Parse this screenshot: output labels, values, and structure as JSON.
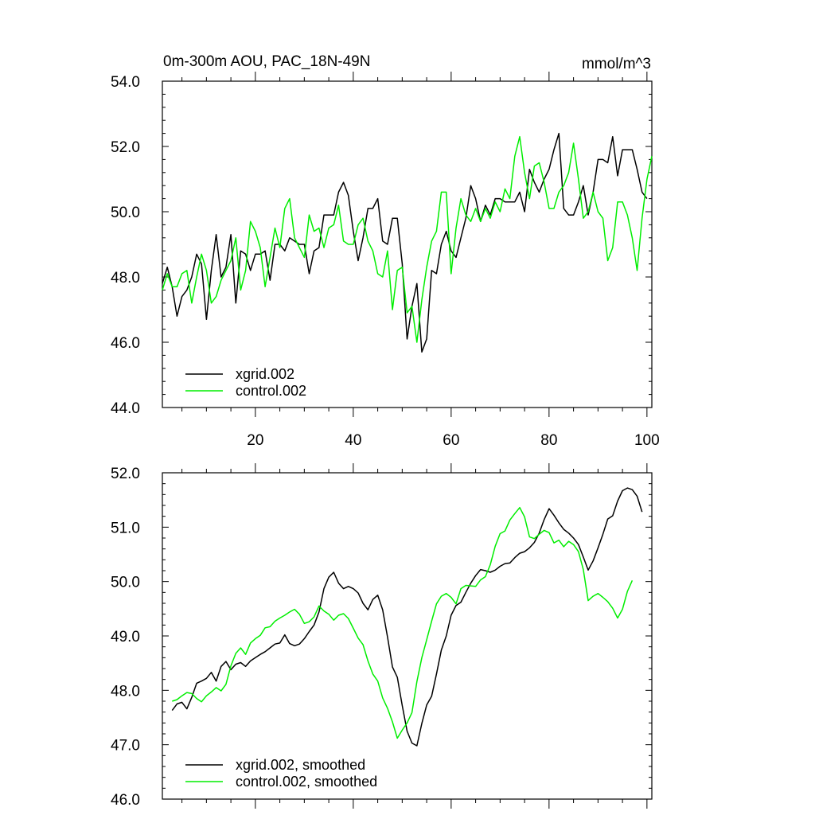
{
  "chart_data": [
    {
      "type": "line",
      "title": "0m-300m AOU, PAC_18N-49N",
      "units": "mmol/m^3",
      "xlim": [
        1,
        101
      ],
      "ylim": [
        44.0,
        54.0
      ],
      "yticks": [
        "44.0",
        "46.0",
        "48.0",
        "50.0",
        "52.0",
        "54.0"
      ],
      "xticks": [
        "20",
        "40",
        "60",
        "80",
        "100"
      ],
      "xticks_shown": true,
      "legend": [
        "xgrid.002",
        "control.002"
      ],
      "series": [
        {
          "name": "xgrid.002",
          "color": "#000000",
          "start": 1,
          "values": [
            47.8,
            48.3,
            47.7,
            46.8,
            47.4,
            47.6,
            48.0,
            48.7,
            48.4,
            46.7,
            48.2,
            49.3,
            48.0,
            48.3,
            49.3,
            47.2,
            48.8,
            48.7,
            48.2,
            48.7,
            48.7,
            48.8,
            47.9,
            49.0,
            49.0,
            48.8,
            49.2,
            49.1,
            49.0,
            49.0,
            48.1,
            48.8,
            48.9,
            49.9,
            49.9,
            49.9,
            50.6,
            50.9,
            50.5,
            49.4,
            48.5,
            49.2,
            50.1,
            50.1,
            50.4,
            49.1,
            49.0,
            49.8,
            49.8,
            48.4,
            46.1,
            47.1,
            47.8,
            45.7,
            46.1,
            48.2,
            48.1,
            49.0,
            49.4,
            48.8,
            48.6,
            49.2,
            49.8,
            50.8,
            50.4,
            49.7,
            50.2,
            49.9,
            50.4,
            50.4,
            50.3,
            50.3,
            50.3,
            50.6,
            50.0,
            51.3,
            50.9,
            50.6,
            51.0,
            51.3,
            51.9,
            52.4,
            50.1,
            49.9,
            49.9,
            50.3,
            50.8,
            49.9,
            50.6,
            51.6,
            51.6,
            51.5,
            52.3,
            51.1,
            51.9,
            51.9,
            51.9,
            51.3,
            50.6,
            50.4
          ]
        },
        {
          "name": "control.002",
          "color": "#00ee00",
          "start": 1,
          "values": [
            47.6,
            48.1,
            47.7,
            47.7,
            48.1,
            48.2,
            47.2,
            48.0,
            48.7,
            48.2,
            47.2,
            47.4,
            47.9,
            48.2,
            48.5,
            49.2,
            47.6,
            48.2,
            49.7,
            49.4,
            48.9,
            47.7,
            48.6,
            49.5,
            48.9,
            50.1,
            50.4,
            49.2,
            48.9,
            48.6,
            49.9,
            49.4,
            49.5,
            48.9,
            49.5,
            49.6,
            50.2,
            49.1,
            49.0,
            49.0,
            49.6,
            49.8,
            49.1,
            48.8,
            48.1,
            48.0,
            48.8,
            47.0,
            48.2,
            48.3,
            46.9,
            47.1,
            46.0,
            47.3,
            48.3,
            49.1,
            49.4,
            50.6,
            50.6,
            48.1,
            49.5,
            50.4,
            49.9,
            49.7,
            50.1,
            49.7,
            50.1,
            49.8,
            50.3,
            50.0,
            50.7,
            50.4,
            51.7,
            52.3,
            51.2,
            50.4,
            51.4,
            51.5,
            50.9,
            50.1,
            50.1,
            50.6,
            50.8,
            51.2,
            52.1,
            51.0,
            49.8,
            50.0,
            50.6,
            50.0,
            49.8,
            48.5,
            48.9,
            50.3,
            50.3,
            49.9,
            49.2,
            48.2,
            49.8,
            51.0,
            51.7
          ]
        }
      ]
    },
    {
      "type": "line",
      "title": "",
      "xlim": [
        1,
        101
      ],
      "ylim": [
        46.0,
        52.0
      ],
      "yticks": [
        "46.0",
        "47.0",
        "48.0",
        "49.0",
        "50.0",
        "51.0",
        "52.0"
      ],
      "xticks_shown": false,
      "legend": [
        "xgrid.002, smoothed",
        "control.002, smoothed"
      ],
      "series": [
        {
          "name": "xgrid.002, smoothed",
          "color": "#000000",
          "start": 3,
          "values": [
            47.63,
            47.75,
            47.78,
            47.66,
            47.87,
            48.13,
            48.17,
            48.22,
            48.33,
            48.17,
            48.44,
            48.53,
            48.38,
            48.48,
            48.51,
            48.44,
            48.54,
            48.6,
            48.66,
            48.71,
            48.78,
            48.85,
            48.87,
            49.02,
            48.86,
            48.82,
            48.85,
            48.95,
            49.08,
            49.2,
            49.44,
            49.87,
            50.08,
            50.17,
            49.97,
            49.87,
            49.91,
            49.87,
            49.79,
            49.6,
            49.48,
            49.67,
            49.75,
            49.48,
            48.98,
            48.43,
            48.24,
            47.72,
            47.25,
            47.03,
            46.98,
            47.39,
            47.73,
            47.89,
            48.3,
            48.74,
            49.0,
            49.38,
            49.56,
            49.62,
            49.8,
            49.97,
            50.11,
            50.22,
            50.2,
            50.17,
            50.21,
            50.28,
            50.33,
            50.34,
            50.44,
            50.52,
            50.55,
            50.62,
            50.72,
            50.89,
            51.14,
            51.34,
            51.22,
            51.08,
            50.96,
            50.89,
            50.8,
            50.68,
            50.45,
            50.21,
            50.38,
            50.62,
            50.87,
            51.15,
            51.21,
            51.48,
            51.67,
            51.72,
            51.69,
            51.57,
            51.28
          ]
        },
        {
          "name": "control.002, smoothed",
          "color": "#00ee00",
          "start": 3,
          "values": [
            47.8,
            47.83,
            47.9,
            47.96,
            47.94,
            47.85,
            47.79,
            47.9,
            47.97,
            48.05,
            47.99,
            48.11,
            48.45,
            48.68,
            48.78,
            48.66,
            48.87,
            48.95,
            49.01,
            49.15,
            49.17,
            49.27,
            49.33,
            49.38,
            49.44,
            49.49,
            49.4,
            49.23,
            49.26,
            49.35,
            49.55,
            49.46,
            49.4,
            49.29,
            49.38,
            49.41,
            49.32,
            49.14,
            48.96,
            48.84,
            48.54,
            48.3,
            48.17,
            47.86,
            47.67,
            47.42,
            47.12,
            47.27,
            47.4,
            47.59,
            48.16,
            48.6,
            48.93,
            49.27,
            49.59,
            49.73,
            49.78,
            49.71,
            49.59,
            49.87,
            49.93,
            49.92,
            49.91,
            50.03,
            50.09,
            50.31,
            50.65,
            50.88,
            50.93,
            51.13,
            51.25,
            51.36,
            51.19,
            50.82,
            50.79,
            50.87,
            50.94,
            50.9,
            50.71,
            50.76,
            50.64,
            50.74,
            50.68,
            50.55,
            50.22,
            49.65,
            49.73,
            49.78,
            49.71,
            49.63,
            49.51,
            49.33,
            49.49,
            49.82,
            50.02
          ]
        }
      ]
    }
  ]
}
